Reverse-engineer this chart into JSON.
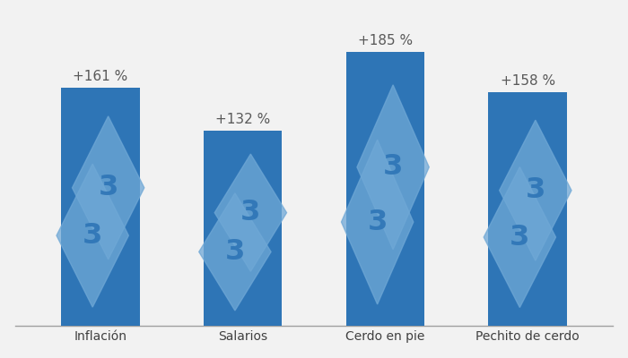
{
  "categories": [
    "Inflación",
    "Salarios",
    "Cerdo en pie",
    "Pechito de cerdo"
  ],
  "values": [
    161,
    132,
    185,
    158
  ],
  "labels": [
    "+161 %",
    "+132 %",
    "+185 %",
    "+158 %"
  ],
  "bar_color": "#2E75B6",
  "watermark_color": "#6FA8D6",
  "background_color": "#F2F2F2",
  "label_color": "#595959",
  "label_fontsize": 11,
  "tick_fontsize": 10,
  "bar_width": 0.55,
  "ylim": [
    0,
    210
  ],
  "figsize": [
    7.0,
    4.0
  ],
  "dpi": 100
}
